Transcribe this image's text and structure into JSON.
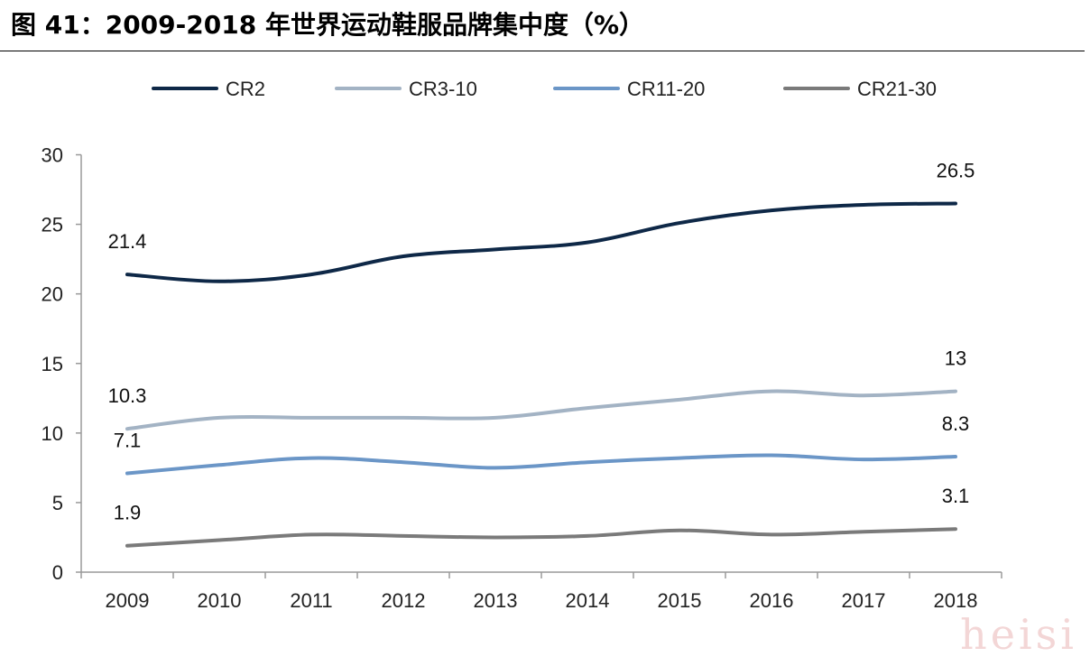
{
  "title": "图 41：2009-2018 年世界运动鞋服品牌集中度（%）",
  "watermark": "heisi",
  "chart_data": {
    "type": "line",
    "title": "图 41：2009-2018 年世界运动鞋服品牌集中度（%）",
    "xlabel": "",
    "ylabel": "",
    "ylim": [
      0,
      30
    ],
    "yticks": [
      0,
      5,
      10,
      15,
      20,
      25,
      30
    ],
    "categories": [
      "2009",
      "2010",
      "2011",
      "2012",
      "2013",
      "2014",
      "2015",
      "2016",
      "2017",
      "2018"
    ],
    "legend_position": "top",
    "grid": false,
    "series": [
      {
        "name": "CR2",
        "color": "#0e2847",
        "values": [
          21.4,
          20.9,
          21.4,
          22.7,
          23.2,
          23.7,
          25.1,
          26.0,
          26.4,
          26.5
        ],
        "labels": [
          "21.4",
          "",
          "",
          "",
          "",
          "",
          "",
          "",
          "",
          "26.5"
        ]
      },
      {
        "name": "CR3-10",
        "color": "#a3b3c4",
        "values": [
          10.3,
          11.1,
          11.1,
          11.1,
          11.1,
          11.8,
          12.4,
          13.0,
          12.7,
          13.0
        ],
        "labels": [
          "10.3",
          "",
          "",
          "",
          "",
          "",
          "",
          "",
          "",
          "13"
        ]
      },
      {
        "name": "CR11-20",
        "color": "#6b96c7",
        "values": [
          7.1,
          7.7,
          8.2,
          7.9,
          7.5,
          7.9,
          8.2,
          8.4,
          8.1,
          8.3
        ],
        "labels": [
          "7.1",
          "",
          "",
          "",
          "",
          "",
          "",
          "",
          "",
          "8.3"
        ]
      },
      {
        "name": "CR21-30",
        "color": "#7a7a7a",
        "values": [
          1.9,
          2.3,
          2.7,
          2.6,
          2.5,
          2.6,
          3.0,
          2.7,
          2.9,
          3.1
        ],
        "labels": [
          "1.9",
          "",
          "",
          "",
          "",
          "",
          "",
          "",
          "",
          "3.1"
        ]
      }
    ]
  }
}
